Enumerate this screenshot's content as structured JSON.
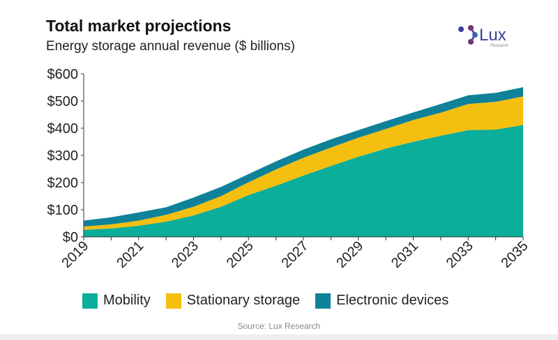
{
  "header": {
    "title": "Total market projections",
    "subtitle": "Energy storage annual revenue ($ billions)",
    "logo_text": "Lux",
    "logo_subtext": "Research"
  },
  "source": "Source: Lux Research",
  "chart_data": {
    "type": "area",
    "stacked": true,
    "title": "Total market projections",
    "subtitle": "Energy storage annual revenue ($ billions)",
    "x": [
      2019,
      2020,
      2021,
      2022,
      2023,
      2024,
      2025,
      2026,
      2027,
      2028,
      2029,
      2030,
      2031,
      2032,
      2033,
      2034,
      2035
    ],
    "x_tick_labels": [
      "2019",
      "2021",
      "2023",
      "2025",
      "2027",
      "2029",
      "2031",
      "2033",
      "2035"
    ],
    "ylim": [
      0,
      600
    ],
    "y_tick_labels": [
      "$0",
      "$100",
      "$200",
      "$300",
      "$400",
      "$500",
      "$600"
    ],
    "grid": false,
    "legend": "bottom",
    "series": [
      {
        "name": "Mobility",
        "color": "#0aae9a",
        "values": [
          26,
          31,
          41,
          56,
          79,
          111,
          154,
          188,
          226,
          261,
          295,
          325,
          350,
          372,
          393,
          395,
          412
        ]
      },
      {
        "name": "Stationary storage",
        "color": "#f5bf0f",
        "values": [
          12,
          15,
          19,
          25,
          32,
          39,
          47,
          60,
          65,
          68,
          70,
          72,
          80,
          85,
          96,
          102,
          105
        ]
      },
      {
        "name": "Electronic devices",
        "color": "#0f8299",
        "values": [
          22,
          26,
          30,
          28,
          34,
          34,
          30,
          30,
          30,
          30,
          28,
          29,
          28,
          32,
          32,
          33,
          34
        ]
      }
    ]
  }
}
